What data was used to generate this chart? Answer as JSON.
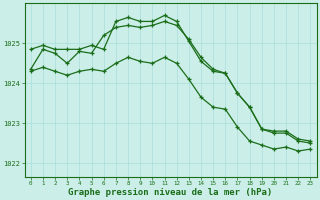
{
  "background_color": "#cceee8",
  "plot_bg_color": "#cceee8",
  "grid_color": "#aaddda",
  "line_color": "#1a6e1a",
  "xlabel": "Graphe pression niveau de la mer (hPa)",
  "xlabel_fontsize": 6.5,
  "yticks": [
    1022,
    1023,
    1024,
    1025
  ],
  "xticks": [
    0,
    1,
    2,
    3,
    4,
    5,
    6,
    7,
    8,
    9,
    10,
    11,
    12,
    13,
    14,
    15,
    16,
    17,
    18,
    19,
    20,
    21,
    22,
    23
  ],
  "ylim": [
    1021.65,
    1026.0
  ],
  "xlim": [
    -0.5,
    23.5
  ],
  "line1_x": [
    0,
    1,
    2,
    3,
    4,
    5,
    6,
    7,
    8,
    9,
    10,
    11,
    12,
    13,
    14,
    15,
    16,
    17,
    18,
    19,
    20,
    21,
    22,
    23
  ],
  "line1_y": [
    1024.85,
    1024.95,
    1024.85,
    1024.85,
    1024.85,
    1024.95,
    1024.85,
    1025.55,
    1025.65,
    1025.55,
    1025.55,
    1025.7,
    1025.55,
    1025.05,
    1024.55,
    1024.3,
    1024.25,
    1023.75,
    1023.4,
    1022.85,
    1022.8,
    1022.8,
    1022.6,
    1022.55
  ],
  "line2_x": [
    0,
    1,
    2,
    3,
    4,
    5,
    6,
    7,
    8,
    9,
    10,
    11,
    12,
    13,
    14,
    15,
    16,
    17,
    18,
    19,
    20,
    21,
    22,
    23
  ],
  "line2_y": [
    1024.35,
    1024.85,
    1024.75,
    1024.5,
    1024.8,
    1024.75,
    1025.2,
    1025.4,
    1025.45,
    1025.4,
    1025.45,
    1025.55,
    1025.45,
    1025.1,
    1024.65,
    1024.35,
    1024.25,
    1023.75,
    1023.4,
    1022.85,
    1022.75,
    1022.75,
    1022.55,
    1022.5
  ],
  "line3_x": [
    0,
    1,
    2,
    3,
    4,
    5,
    6,
    7,
    8,
    9,
    10,
    11,
    12,
    13,
    14,
    15,
    16,
    17,
    18,
    19,
    20,
    21,
    22,
    23
  ],
  "line3_y": [
    1024.3,
    1024.4,
    1024.3,
    1024.2,
    1024.3,
    1024.35,
    1024.3,
    1024.5,
    1024.65,
    1024.55,
    1024.5,
    1024.65,
    1024.5,
    1024.1,
    1023.65,
    1023.4,
    1023.35,
    1022.9,
    1022.55,
    1022.45,
    1022.35,
    1022.4,
    1022.3,
    1022.35
  ]
}
